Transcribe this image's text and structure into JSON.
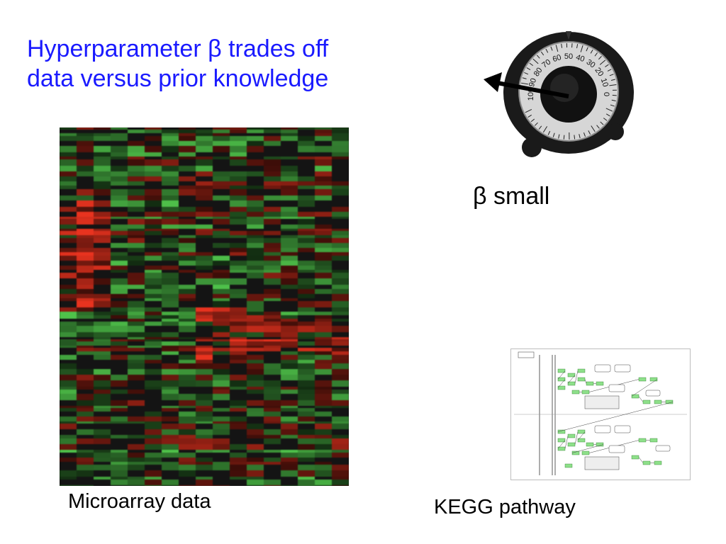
{
  "slide": {
    "title_line1": "Hyperparameter β trades off",
    "title_line2": "data versus prior knowledge",
    "beta_label": "β  small",
    "microarray_label": "Microarray data",
    "kegg_label": "KEGG pathway"
  },
  "dial": {
    "scale_labels": [
      "100",
      "90",
      "80",
      "70",
      "60",
      "50",
      "40",
      "30",
      "20",
      "10",
      "0"
    ],
    "setting": "100"
  },
  "colors": {
    "title": "#1a1aff",
    "heatmap_red": "#e8331f",
    "heatmap_green": "#4fc24a",
    "heatmap_black": "#0b0b0b",
    "kegg_box_green": "#8ee08a"
  },
  "icons": {
    "dial": "rotary-dial-icon",
    "arrow": "arrow-left-icon"
  }
}
